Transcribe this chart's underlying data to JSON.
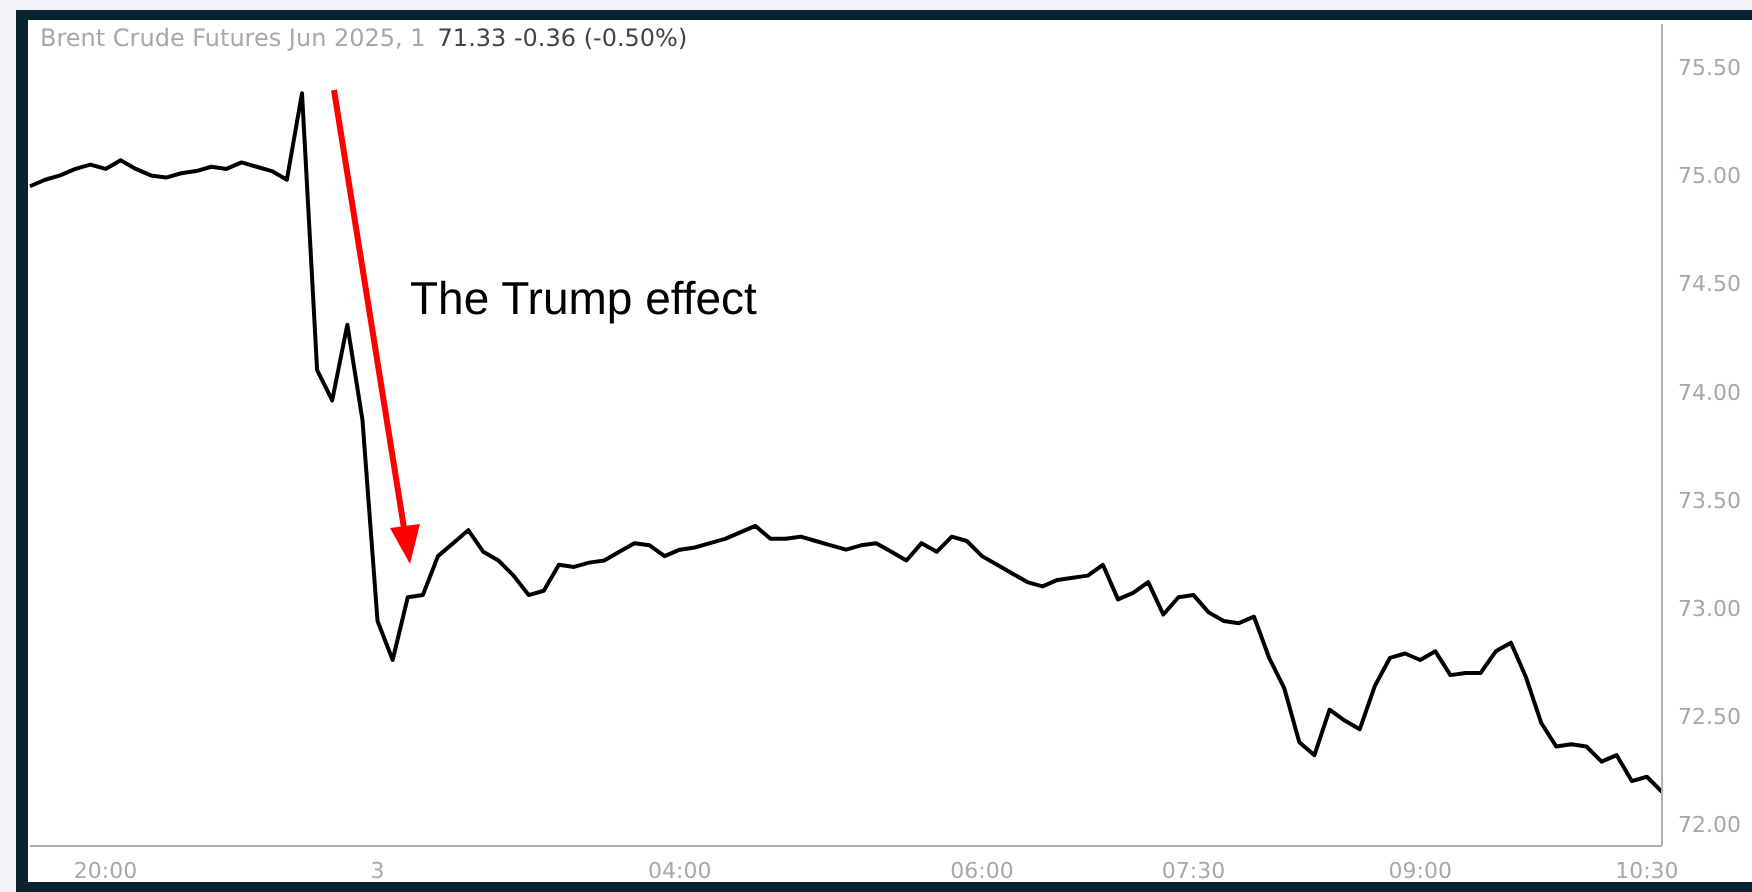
{
  "chart_data": {
    "type": "line",
    "title": "Brent Crude Futures Jun 2025, 1",
    "subtitle": "71.33  -0.36 (-0.50%)",
    "annotations": [
      "The Trump effect"
    ],
    "categories": [
      null,
      null,
      null,
      null,
      null,
      "20:00",
      null,
      null,
      null,
      null,
      null,
      null,
      null,
      null,
      null,
      null,
      null,
      null,
      null,
      null,
      null,
      null,
      null,
      "3",
      null,
      null,
      null,
      null,
      null,
      null,
      null,
      null,
      null,
      null,
      null,
      null,
      null,
      null,
      null,
      null,
      null,
      null,
      null,
      "04:00",
      null,
      null,
      null,
      null,
      null,
      null,
      null,
      null,
      null,
      null,
      null,
      null,
      null,
      null,
      null,
      null,
      null,
      null,
      null,
      "06:00",
      null,
      null,
      null,
      null,
      null,
      null,
      null,
      null,
      null,
      null,
      null,
      null,
      null,
      "07:30",
      null,
      null,
      null,
      null,
      null,
      null,
      null,
      null,
      null,
      null,
      null,
      null,
      null,
      null,
      "09:00",
      null,
      null,
      null,
      null,
      null,
      null,
      null,
      null,
      null,
      null,
      null,
      null,
      null,
      null,
      "10:30",
      null
    ],
    "ylim": [
      71.9,
      75.7
    ],
    "yticks": [
      {
        "value": 72,
        "label": "72.00"
      },
      {
        "value": 72.5,
        "label": "72.50"
      },
      {
        "value": 73,
        "label": "73.00"
      },
      {
        "value": 73.5,
        "label": "73.50"
      },
      {
        "value": 74,
        "label": "74.00"
      },
      {
        "value": 74.5,
        "label": "74.50"
      },
      {
        "value": 75,
        "label": "75.00"
      },
      {
        "value": 75.5,
        "label": "75.50"
      }
    ],
    "line_style": "solid",
    "series": [
      {
        "color": "#000000",
        "values": [
          74.95,
          74.98,
          75.0,
          75.03,
          75.05,
          75.03,
          75.07,
          75.03,
          75.0,
          74.99,
          75.01,
          75.02,
          75.04,
          75.03,
          75.06,
          75.04,
          75.02,
          74.98,
          75.38,
          74.1,
          73.96,
          74.31,
          73.87,
          72.94,
          72.76,
          73.05,
          73.06,
          73.24,
          73.3,
          73.36,
          73.26,
          73.22,
          73.15,
          73.06,
          73.08,
          73.2,
          73.19,
          73.21,
          73.22,
          73.26,
          73.3,
          73.29,
          73.24,
          73.27,
          73.28,
          73.3,
          73.32,
          73.35,
          73.38,
          73.32,
          73.32,
          73.33,
          73.31,
          73.29,
          73.27,
          73.29,
          73.3,
          73.26,
          73.22,
          73.3,
          73.26,
          73.33,
          73.31,
          73.24,
          73.2,
          73.16,
          73.12,
          73.1,
          73.13,
          73.14,
          73.15,
          73.2,
          73.04,
          73.07,
          73.12,
          72.97,
          73.05,
          73.06,
          72.98,
          72.94,
          72.93,
          72.96,
          72.77,
          72.63,
          72.38,
          72.32,
          72.53,
          72.48,
          72.44,
          72.64,
          72.77,
          72.79,
          72.76,
          72.8,
          72.69,
          72.7,
          72.7,
          72.8,
          72.84,
          72.68,
          72.47,
          72.36,
          72.37,
          72.36,
          72.29,
          72.32,
          72.2,
          72.22,
          72.15
        ]
      }
    ]
  }
}
